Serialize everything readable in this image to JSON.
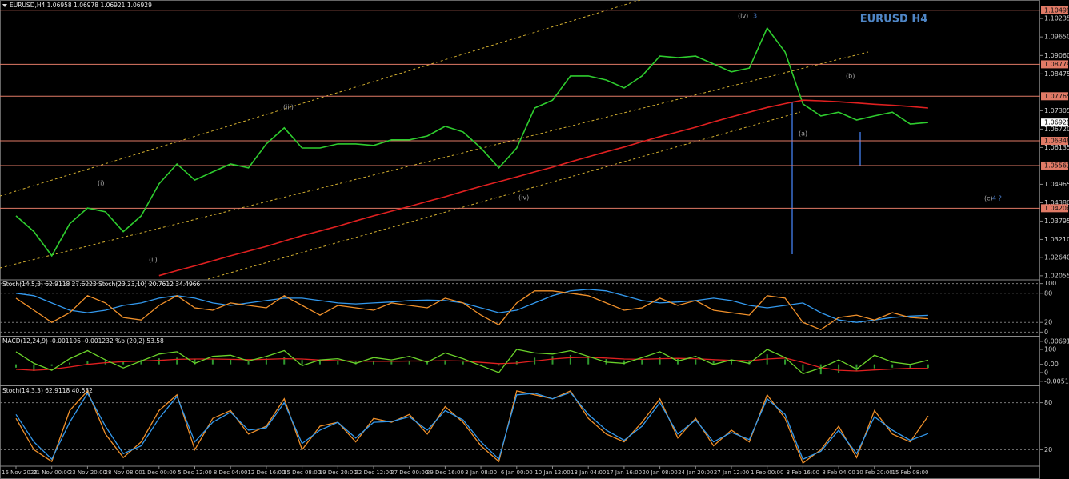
{
  "chart_data": [
    {
      "type": "line",
      "title": "EURUSD,H4 1.06958 1.06978 1.06921 1.06929",
      "annotation": "EURUSD H4",
      "categories": [
        "16 Nov 2022",
        null,
        "21 Nov 00:00",
        null,
        "23 Nov 20:00",
        null,
        "28 Nov 08:00",
        null,
        "1 Dec 00:00",
        null,
        "5 Dec 12:00",
        null,
        "8 Dec 04:00",
        null,
        "12 Dec 16:00",
        null,
        "15 Dec 08:00",
        null,
        "19 Dec 20:00",
        null,
        "22 Dec 12:00",
        null,
        "27 Dec 00:00",
        null,
        "29 Dec 16:00",
        null,
        "3 Jan 08:00",
        null,
        "6 Jan 00:00",
        null,
        "10 Jan 12:00",
        null,
        "13 Jan 04:00",
        null,
        "17 Jan 16:00",
        null,
        "20 Jan 08:00",
        null,
        "24 Jan 20:00",
        null,
        "27 Jan 12:00",
        null,
        "1 Feb 00:00",
        null,
        "3 Feb 16:00",
        null,
        "8 Feb 04:00",
        null,
        "10 Feb 20:00",
        null,
        "15 Feb 08:00",
        null
      ],
      "series": [
        {
          "color": "#2ecc2e",
          "values": [
            1.0396,
            1.0346,
            1.0269,
            1.0371,
            1.0421,
            1.0409,
            1.0346,
            1.0396,
            1.0498,
            1.0561,
            1.051,
            1.0536,
            1.0561,
            1.0549,
            1.0625,
            1.0676,
            1.0612,
            1.0612,
            1.0625,
            1.0625,
            1.062,
            1.0638,
            1.0638,
            1.065,
            1.0681,
            1.0663,
            1.0612,
            1.0549,
            1.0612,
            1.0739,
            1.0764,
            1.0841,
            1.0841,
            1.0828,
            1.0803,
            1.0841,
            1.0904,
            1.0899,
            1.0904,
            1.0879,
            1.0854,
            1.0866,
            1.0993,
            1.0917,
            1.0752,
            1.0714,
            1.0726,
            1.0701,
            1.0714,
            1.0726,
            1.0688,
            1.0693
          ]
        },
        {
          "color": "#e02020",
          "values": [
            null,
            null,
            null,
            null,
            null,
            null,
            null,
            null,
            1.0206,
            1.0222,
            1.0237,
            1.0253,
            1.0269,
            1.0284,
            1.0299,
            1.0316,
            1.0333,
            1.0348,
            1.0363,
            1.038,
            1.0396,
            1.0411,
            1.0426,
            1.0442,
            1.0457,
            1.0474,
            1.049,
            1.0505,
            1.052,
            1.0536,
            1.0551,
            1.0568,
            1.0584,
            1.06,
            1.0615,
            1.0632,
            1.0648,
            1.0663,
            1.0678,
            1.0695,
            1.0711,
            1.0726,
            1.0741,
            1.0753,
            1.0764,
            1.0762,
            1.0759,
            1.0755,
            1.0751,
            1.0748,
            1.0744,
            1.0739
          ]
        }
      ],
      "ylim": [
        1.0195,
        1.1062
      ],
      "yticks": [
        1.10235,
        {
          "value": 1.0965,
          "label": "1.09650"
        },
        {
          "value": 1.0906,
          "label": "1.09060"
        },
        1.08475,
        1.07305,
        {
          "value": 1.0672,
          "label": "1.06720"
        },
        1.06135,
        1.04965,
        {
          "value": 1.0438,
          "label": "1.04380"
        },
        1.03795,
        {
          "value": 1.0321,
          "label": "1.03210"
        },
        {
          "value": 1.0264,
          "label": "1.02640"
        },
        1.02055
      ],
      "grid": false,
      "levels": [
        1.10499,
        1.08779,
        1.07765,
        1.06348,
        1.05561,
        1.04204
      ],
      "level_color": "#e07a66",
      "last_price": 1.06929,
      "wave_labels": [
        "(iv)",
        "3",
        "(i)",
        "(ii)",
        "(iii)",
        "(iv)",
        "(a)",
        "(b)",
        "(c)",
        "4 ?"
      ]
    },
    {
      "type": "line",
      "title": "Stoch(14,5,3) 62.9118 27.6223  Stoch(23,23,10) 20.7612 34.4966",
      "series": [
        {
          "color": "#3399ee",
          "values": [
            80,
            75,
            60,
            45,
            40,
            45,
            55,
            60,
            70,
            75,
            70,
            60,
            55,
            60,
            65,
            70,
            70,
            65,
            60,
            58,
            60,
            62,
            65,
            66,
            65,
            60,
            50,
            40,
            45,
            60,
            75,
            85,
            88,
            85,
            75,
            65,
            60,
            62,
            65,
            70,
            65,
            55,
            50,
            55,
            60,
            40,
            25,
            20,
            25,
            30,
            33,
            34.4966
          ]
        },
        {
          "color": "#f0902a",
          "values": [
            70,
            45,
            20,
            40,
            75,
            60,
            30,
            25,
            55,
            75,
            50,
            45,
            60,
            55,
            50,
            75,
            55,
            35,
            55,
            50,
            45,
            60,
            55,
            50,
            70,
            60,
            35,
            15,
            60,
            85,
            85,
            80,
            75,
            60,
            45,
            50,
            70,
            55,
            65,
            45,
            40,
            35,
            75,
            70,
            20,
            5,
            30,
            35,
            25,
            40,
            30,
            27.6223
          ]
        }
      ],
      "ylim": [
        -6,
        106
      ],
      "yticks": [
        100,
        80,
        20,
        0
      ],
      "grid": true
    },
    {
      "type": "line",
      "title": "MACD(12,24,9) -0.001106 -0.001232  %b (20,2) 53.58",
      "series": [
        {
          "type": "bar",
          "color": "#2f9a2f",
          "values": [
            -0.001,
            -0.002,
            -0.0005,
            0.0005,
            0.001,
            0.0012,
            0.001,
            0.0014,
            0.0018,
            0.002,
            0.0015,
            0.0016,
            0.0014,
            0.0012,
            0.0018,
            0.0022,
            0.0013,
            0.001,
            0.001,
            0.0008,
            0.0009,
            0.001,
            0.0011,
            0.0009,
            0.0013,
            0.0008,
            0.0,
            -0.0004,
            0.001,
            0.002,
            0.0025,
            0.0028,
            0.0024,
            0.0016,
            0.0012,
            0.0016,
            0.0022,
            0.0017,
            0.0015,
            0.001,
            0.001,
            0.001,
            0.003,
            0.0015,
            -0.002,
            -0.003,
            -0.0025,
            -0.002,
            -0.0012,
            -0.001,
            -0.0012,
            -0.001106
          ]
        },
        {
          "color": "#e02020",
          "values": [
            -0.0015,
            -0.0018,
            -0.0015,
            -0.0008,
            0.0,
            0.0005,
            0.0008,
            0.001,
            0.0012,
            0.0015,
            0.0016,
            0.0016,
            0.0015,
            0.0014,
            0.0015,
            0.0017,
            0.0016,
            0.0013,
            0.0011,
            0.001,
            0.0009,
            0.0009,
            0.001,
            0.001,
            0.0011,
            0.001,
            0.0006,
            0.0002,
            0.0004,
            0.001,
            0.0016,
            0.002,
            0.0021,
            0.0019,
            0.0016,
            0.0015,
            0.0017,
            0.0018,
            0.0017,
            0.0014,
            0.0012,
            0.0011,
            0.0016,
            0.0019,
            0.0006,
            -0.001,
            -0.0018,
            -0.002,
            -0.0017,
            -0.0014,
            -0.0012,
            -0.001232
          ]
        },
        {
          "axis": "y2",
          "color": "#6ad22a",
          "values": [
            90,
            40,
            10,
            60,
            95,
            55,
            20,
            50,
            80,
            90,
            40,
            70,
            75,
            50,
            70,
            95,
            30,
            55,
            60,
            40,
            65,
            55,
            70,
            45,
            85,
            60,
            30,
            0,
            100,
            85,
            80,
            95,
            70,
            45,
            40,
            65,
            90,
            50,
            70,
            35,
            55,
            40,
            100,
            65,
            -5,
            20,
            55,
            15,
            75,
            45,
            35,
            53.58
          ]
        }
      ],
      "ylim": [
        -0.0061,
        0.0081
      ],
      "yticks": [
        0.006914,
        {
          "value": 0,
          "label": "0.00"
        },
        -0.005104
      ],
      "y2lim": [
        -52,
        152
      ],
      "y2ticks": [
        100,
        0
      ],
      "grid": false
    },
    {
      "type": "line",
      "title": "Stoch(14,3,3) 62.9118 40.582",
      "series": [
        {
          "color": "#f0902a",
          "values": [
            60,
            20,
            5,
            70,
            95,
            40,
            10,
            30,
            70,
            90,
            20,
            60,
            70,
            40,
            50,
            85,
            20,
            50,
            55,
            30,
            60,
            55,
            65,
            40,
            75,
            55,
            25,
            5,
            95,
            90,
            85,
            95,
            60,
            40,
            30,
            55,
            85,
            35,
            60,
            25,
            45,
            30,
            90,
            60,
            3,
            20,
            50,
            10,
            70,
            40,
            30,
            62.9118
          ]
        },
        {
          "color": "#3399ee",
          "values": [
            65,
            30,
            8,
            55,
            92,
            50,
            15,
            25,
            60,
            88,
            30,
            55,
            68,
            45,
            48,
            80,
            28,
            45,
            55,
            35,
            55,
            56,
            62,
            45,
            70,
            58,
            30,
            8,
            90,
            92,
            85,
            93,
            65,
            45,
            32,
            50,
            80,
            40,
            58,
            30,
            42,
            33,
            85,
            65,
            8,
            18,
            45,
            15,
            62,
            45,
            32,
            40.58
          ]
        }
      ],
      "ylim": [
        0,
        100
      ],
      "yticks": [
        80,
        20
      ],
      "grid": true
    }
  ]
}
